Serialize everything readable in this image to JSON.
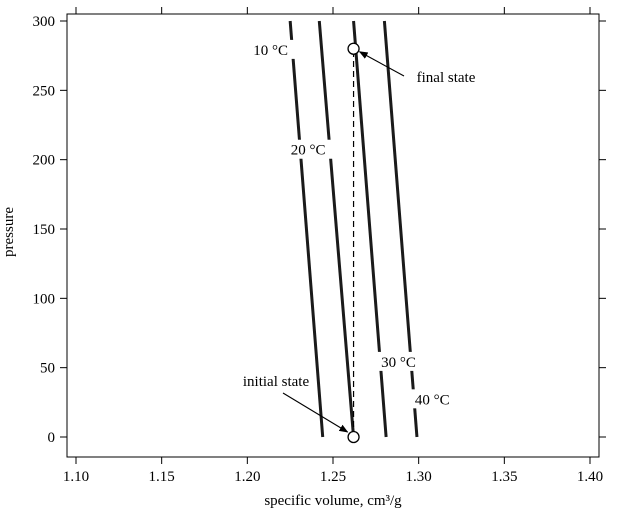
{
  "chart_data": {
    "type": "line",
    "xlabel": "specific volume, cm³/g",
    "ylabel": "pressure",
    "xlim": [
      1.1,
      1.4
    ],
    "ylim": [
      0,
      300
    ],
    "xticks": [
      "1.10",
      "1.15",
      "1.20",
      "1.25",
      "1.30",
      "1.35",
      "1.40"
    ],
    "yticks": [
      "0",
      "50",
      "100",
      "150",
      "200",
      "250",
      "300"
    ],
    "grid": false,
    "series": [
      {
        "name": "10 °C",
        "points": [
          [
            1.244,
            0
          ],
          [
            1.225,
            300
          ]
        ]
      },
      {
        "name": "20 °C",
        "points": [
          [
            1.262,
            0
          ],
          [
            1.242,
            300
          ]
        ]
      },
      {
        "name": "30 °C",
        "points": [
          [
            1.281,
            0
          ],
          [
            1.262,
            300
          ]
        ]
      },
      {
        "name": "40 °C",
        "points": [
          [
            1.299,
            0
          ],
          [
            1.28,
            300
          ]
        ]
      }
    ],
    "process_line": {
      "style": "dashed",
      "points": [
        [
          1.262,
          0
        ],
        [
          1.262,
          280
        ]
      ]
    },
    "markers": [
      {
        "id": "initial",
        "x": 1.262,
        "y": 0
      },
      {
        "id": "final",
        "x": 1.262,
        "y": 280
      }
    ],
    "annotations": [
      {
        "id": "initial",
        "text": "initial state"
      },
      {
        "id": "final",
        "text": "final state"
      }
    ]
  }
}
